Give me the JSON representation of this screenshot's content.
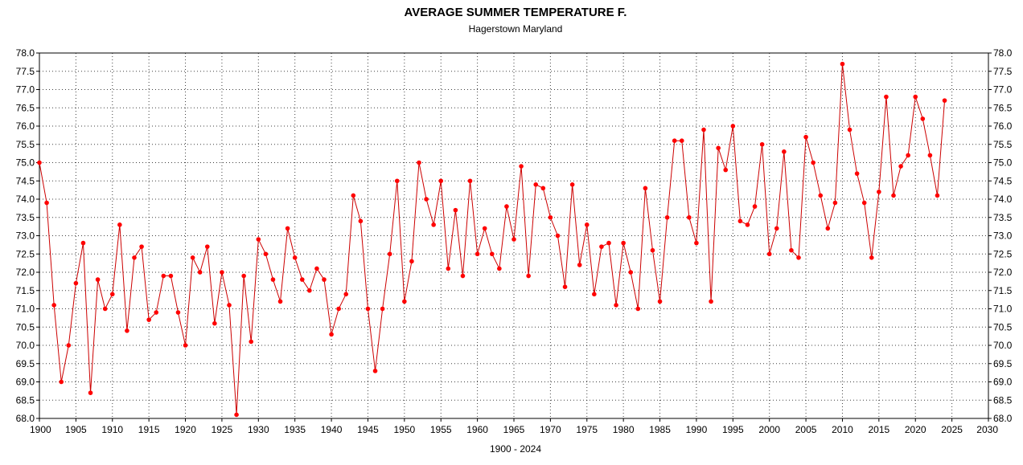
{
  "chart_data": {
    "type": "line",
    "title": "AVERAGE SUMMER TEMPERATURE F.",
    "subtitle": "Hagerstown Maryland",
    "xlabel": "1900 - 2024",
    "ylabel": "",
    "xlim": [
      1900,
      2030
    ],
    "ylim": [
      68.0,
      78.0
    ],
    "x_ticks": [
      1900,
      1905,
      1910,
      1915,
      1920,
      1925,
      1930,
      1935,
      1940,
      1945,
      1950,
      1955,
      1960,
      1965,
      1970,
      1975,
      1980,
      1985,
      1990,
      1995,
      2000,
      2005,
      2010,
      2015,
      2020,
      2025,
      2030
    ],
    "y_ticks": [
      "68.0",
      "68.5",
      "69.0",
      "69.5",
      "70.0",
      "70.5",
      "71.0",
      "71.5",
      "72.0",
      "72.5",
      "73.0",
      "73.5",
      "74.0",
      "74.5",
      "75.0",
      "75.5",
      "76.0",
      "76.5",
      "77.0",
      "77.5",
      "78.0"
    ],
    "grid": true,
    "legend": "none",
    "line_color": "#cc0000",
    "marker_color": "#ff0000",
    "series": [
      {
        "x": [
          1900,
          1901,
          1902,
          1903,
          1904,
          1905,
          1906,
          1907,
          1908,
          1909,
          1910,
          1911,
          1912,
          1913,
          1914,
          1915,
          1916,
          1917,
          1918,
          1919,
          1920,
          1921,
          1922,
          1923,
          1924,
          1925,
          1926,
          1927,
          1928,
          1929,
          1930,
          1931,
          1932,
          1933,
          1934,
          1935,
          1936,
          1937,
          1938,
          1939,
          1940,
          1941,
          1942,
          1943,
          1944,
          1945,
          1946,
          1947,
          1948,
          1949,
          1950,
          1951,
          1952,
          1953,
          1954,
          1955,
          1956,
          1957,
          1958,
          1959,
          1960,
          1961,
          1962,
          1963,
          1964,
          1965,
          1966,
          1967,
          1968,
          1969,
          1970,
          1971,
          1972,
          1973,
          1974,
          1975,
          1976,
          1977,
          1978,
          1979,
          1980,
          1981,
          1982,
          1983,
          1984,
          1985,
          1986,
          1987,
          1988,
          1989,
          1990,
          1991,
          1992,
          1993,
          1994,
          1995,
          1996,
          1997,
          1998,
          1999,
          2000,
          2001,
          2002,
          2003,
          2004,
          2005,
          2006,
          2007,
          2008,
          2009,
          2010,
          2011,
          2012,
          2013,
          2014,
          2015,
          2016,
          2017,
          2018,
          2019,
          2020,
          2021,
          2022,
          2023,
          2024
        ],
        "values": [
          75.0,
          73.9,
          71.1,
          69.0,
          70.0,
          71.7,
          72.8,
          68.7,
          71.8,
          71.0,
          71.4,
          73.3,
          70.4,
          72.4,
          72.7,
          70.7,
          70.9,
          71.9,
          71.9,
          70.9,
          70.0,
          72.4,
          72.0,
          72.7,
          70.6,
          72.0,
          71.1,
          68.1,
          71.9,
          70.1,
          72.9,
          72.5,
          71.8,
          71.2,
          73.2,
          72.4,
          71.8,
          71.5,
          72.1,
          71.8,
          70.3,
          71.0,
          71.4,
          74.1,
          73.4,
          71.0,
          69.3,
          71.0,
          72.5,
          74.5,
          71.2,
          72.3,
          75.0,
          74.0,
          73.3,
          74.5,
          72.1,
          73.7,
          71.9,
          74.5,
          72.5,
          73.2,
          72.5,
          72.1,
          73.8,
          72.9,
          74.9,
          71.9,
          74.4,
          74.3,
          73.5,
          73.0,
          71.6,
          74.4,
          72.2,
          73.3,
          71.4,
          72.7,
          72.8,
          71.1,
          72.8,
          72.0,
          71.0,
          74.3,
          72.6,
          71.2,
          73.5,
          75.6,
          75.6,
          73.5,
          72.8,
          75.9,
          71.2,
          75.4,
          74.8,
          76.0,
          73.4,
          73.3,
          73.8,
          75.5,
          72.5,
          73.2,
          75.3,
          72.6,
          72.4,
          75.7,
          75.0,
          74.1,
          73.2,
          73.9,
          77.7,
          75.9,
          74.7,
          73.9,
          72.4,
          74.2,
          76.8,
          74.1,
          74.9,
          75.2,
          76.8,
          76.2,
          75.2,
          74.1,
          76.7
        ]
      }
    ]
  }
}
